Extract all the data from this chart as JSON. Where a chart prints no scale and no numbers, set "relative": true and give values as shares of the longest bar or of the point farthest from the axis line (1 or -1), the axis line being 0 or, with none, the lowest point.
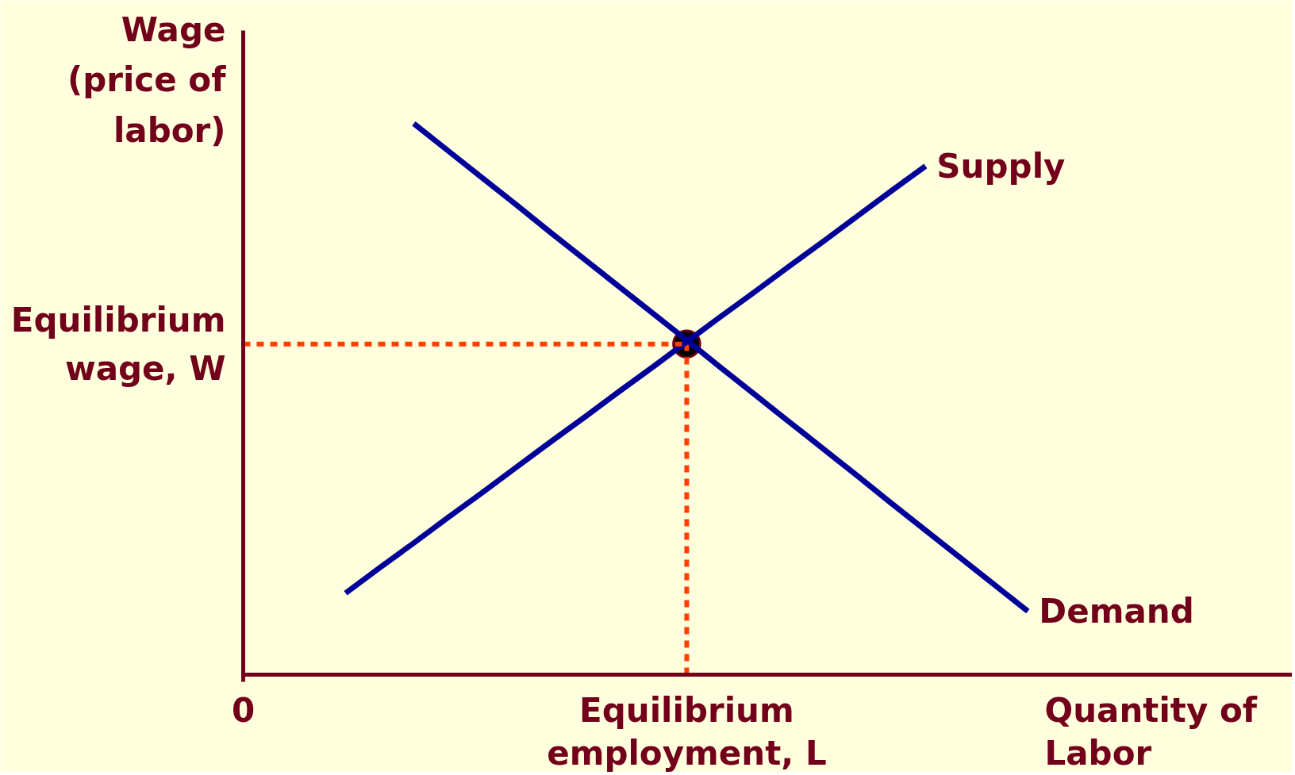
{
  "chart_data": {
    "type": "line",
    "relative": true,
    "xlabel": "Quantity of Labor",
    "ylabel": "Wage (price of labor)",
    "marker": "none",
    "categories": [
      "0",
      null,
      null,
      null,
      null,
      null,
      null,
      null,
      null,
      null,
      null,
      null,
      null,
      "Equilibrium employment, L",
      null,
      null,
      null,
      null,
      null,
      null,
      null,
      null,
      null,
      null
    ],
    "series": [
      {
        "name": "Supply",
        "color": "#000099",
        "values": [
          null,
          null,
          null,
          0.148,
          0.194,
          0.239,
          0.285,
          0.33,
          0.376,
          0.422,
          0.467,
          0.513,
          0.558,
          0.604,
          0.65,
          0.695,
          0.741,
          0.786,
          0.832,
          0.878,
          0.923,
          null,
          null,
          null
        ]
      },
      {
        "name": "Demand",
        "color": "#000099",
        "values": [
          null,
          null,
          null,
          null,
          null,
          1.0,
          0.951,
          0.902,
          0.853,
          0.803,
          0.754,
          0.705,
          0.656,
          0.607,
          0.557,
          0.508,
          0.459,
          0.41,
          0.361,
          0.311,
          0.262,
          0.213,
          0.164,
          0.115
        ]
      },
      {
        "type": "lollipop",
        "color": "#ff4000",
        "line_style": "dotted",
        "marker": "circle",
        "colors": [
          null,
          null,
          null,
          null,
          null,
          null,
          null,
          null,
          null,
          null,
          null,
          null,
          null,
          "#000000",
          null,
          null,
          null,
          null,
          null,
          null,
          null,
          null,
          null,
          null
        ],
        "values": [
          null,
          null,
          null,
          null,
          null,
          null,
          null,
          null,
          null,
          null,
          null,
          null,
          null,
          0.6,
          null,
          null,
          null,
          null,
          null,
          null,
          null,
          null,
          null,
          null
        ]
      }
    ],
    "ref_lines": [
      {
        "axis": "y",
        "value": 0.6,
        "label": "Equilibrium wage, W",
        "color": "#ff4000",
        "line_style": "dotted"
      }
    ]
  }
}
